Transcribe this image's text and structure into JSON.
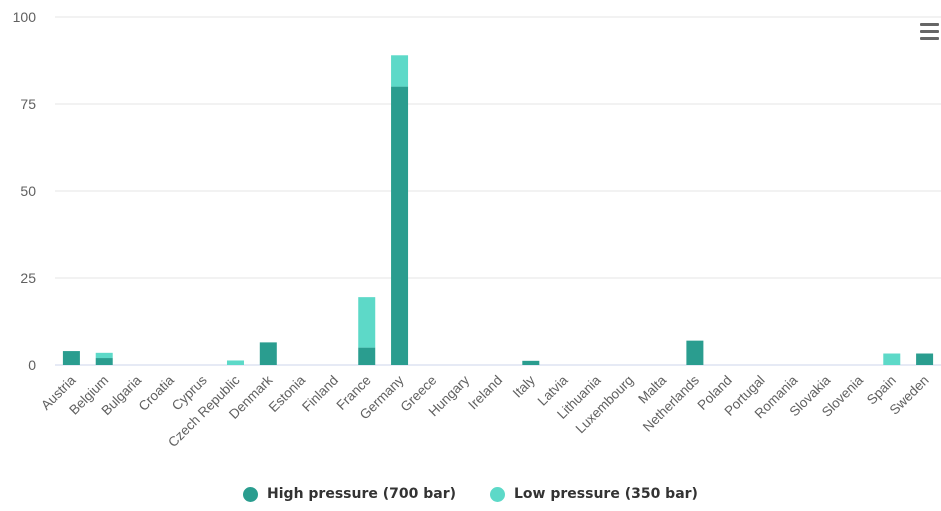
{
  "chart_data": {
    "type": "bar",
    "stacked": true,
    "categories": [
      "Austria",
      "Belgium",
      "Bulgaria",
      "Croatia",
      "Cyprus",
      "Czech Republic",
      "Denmark",
      "Estonia",
      "Finland",
      "France",
      "Germany",
      "Greece",
      "Hungary",
      "Ireland",
      "Italy",
      "Latvia",
      "Lithuania",
      "Luxembourg",
      "Malta",
      "Netherlands",
      "Poland",
      "Portugal",
      "Romania",
      "Slovakia",
      "Slovenia",
      "Spain",
      "Sweden"
    ],
    "series": [
      {
        "name": "High pressure (700 bar)",
        "color": "#2a9d8f",
        "values": [
          4,
          2,
          0,
          0,
          0,
          0,
          6.5,
          0,
          0,
          5,
          80,
          0,
          0,
          0,
          1.2,
          0,
          0,
          0,
          0,
          7,
          0,
          0,
          0,
          0,
          0,
          0,
          3.3
        ]
      },
      {
        "name": "Low pressure (350 bar)",
        "color": "#5dd9c8",
        "values": [
          0,
          1.5,
          0,
          0,
          0,
          1.3,
          0,
          0,
          0,
          14.5,
          9,
          0,
          0,
          0,
          0,
          0,
          0,
          0,
          0,
          0,
          0,
          0,
          0,
          0,
          0,
          3.3,
          0
        ]
      }
    ],
    "yticks": [
      0,
      25,
      50,
      75,
      100
    ],
    "ylim": [
      0,
      100
    ],
    "grid": true,
    "legend_position": "bottom-center"
  },
  "ui": {
    "menu_icon": "hamburger-menu-icon"
  }
}
